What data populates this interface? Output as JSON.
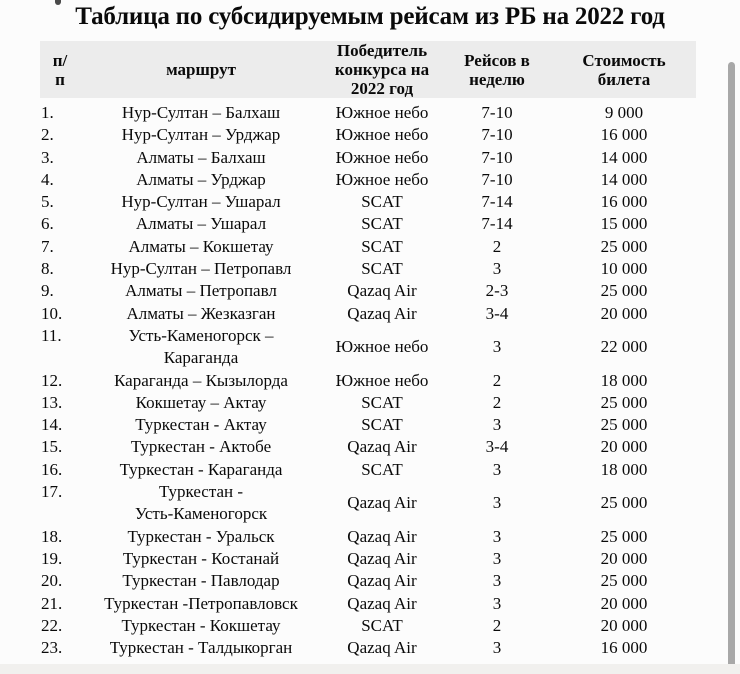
{
  "title": "Таблица по субсидируемым рейсам из РБ на 2022 год",
  "colors": {
    "page_bg": "#fcfcfc",
    "header_bg": "#ececec",
    "text": "#0a0a0a",
    "scrollbar": "#a8a8a8",
    "bottom_strip": "#f1f0ee"
  },
  "table": {
    "headers": {
      "num": "п/\nп",
      "route": "маршрут",
      "winner": "Победитель\nконкурса на\n2022 год",
      "per_week": "Рейсов в\nнеделю",
      "price": "Стоимость\nбилета"
    },
    "rows": [
      {
        "num": "1.",
        "route": "Нур-Султан – Балхаш",
        "winner": "Южное небо",
        "per_week": "7-10",
        "price": "9 000"
      },
      {
        "num": "2.",
        "route": "Нур-Султан – Урджар",
        "winner": "Южное небо",
        "per_week": "7-10",
        "price": "16 000"
      },
      {
        "num": "3.",
        "route": "Алматы – Балхаш",
        "winner": "Южное небо",
        "per_week": "7-10",
        "price": "14 000"
      },
      {
        "num": "4.",
        "route": "Алматы – Урджар",
        "winner": "Южное небо",
        "per_week": "7-10",
        "price": "14 000"
      },
      {
        "num": "5.",
        "route": "Нур-Султан – Ушарал",
        "winner": "SCAT",
        "per_week": "7-14",
        "price": "16 000"
      },
      {
        "num": "6.",
        "route": "Алматы – Ушарал",
        "winner": "SCAT",
        "per_week": "7-14",
        "price": "15 000"
      },
      {
        "num": "7.",
        "route": "Алматы – Кокшетау",
        "winner": "SCAT",
        "per_week": "2",
        "price": "25 000"
      },
      {
        "num": "8.",
        "route": "Нур-Султан – Петропавл",
        "winner": "SCAT",
        "per_week": "3",
        "price": "10 000"
      },
      {
        "num": "9.",
        "route": "Алматы – Петропавл",
        "winner": "Qazaq Air",
        "per_week": "2-3",
        "price": "25 000"
      },
      {
        "num": "10.",
        "route": "Алматы – Жезказган",
        "winner": "Qazaq Air",
        "per_week": "3-4",
        "price": "20 000"
      },
      {
        "num": "11.",
        "route": "Усть-Каменогорск –\nКараганда",
        "winner": "Южное небо",
        "per_week": "3",
        "price": "22 000"
      },
      {
        "num": "12.",
        "route": "Караганда – Кызылорда",
        "winner": "Южное небо",
        "per_week": "2",
        "price": "18 000"
      },
      {
        "num": "13.",
        "route": "Кокшетау – Актау",
        "winner": "SCAT",
        "per_week": "2",
        "price": "25 000"
      },
      {
        "num": "14.",
        "route": "Туркестан - Актау",
        "winner": "SCAT",
        "per_week": "3",
        "price": "25 000"
      },
      {
        "num": "15.",
        "route": "Туркестан - Актобе",
        "winner": "Qazaq Air",
        "per_week": "3-4",
        "price": "20 000"
      },
      {
        "num": "16.",
        "route": "Туркестан - Караганда",
        "winner": "SCAT",
        "per_week": "3",
        "price": "18 000"
      },
      {
        "num": "17.",
        "route": "Туркестан -\nУсть-Каменогорск",
        "winner": "Qazaq Air",
        "per_week": "3",
        "price": "25 000"
      },
      {
        "num": "18.",
        "route": "Туркестан - Уральск",
        "winner": "Qazaq Air",
        "per_week": "3",
        "price": "25 000"
      },
      {
        "num": "19.",
        "route": "Туркестан - Костанай",
        "winner": "Qazaq Air",
        "per_week": "3",
        "price": "20 000"
      },
      {
        "num": "20.",
        "route": "Туркестан - Павлодар",
        "winner": "Qazaq Air",
        "per_week": "3",
        "price": "25 000"
      },
      {
        "num": "21.",
        "route": "Туркестан -Петропавловск",
        "winner": "Qazaq Air",
        "per_week": "3",
        "price": "20 000"
      },
      {
        "num": "22.",
        "route": "Туркестан - Кокшетау",
        "winner": "SCAT",
        "per_week": "2",
        "price": "20 000"
      },
      {
        "num": "23.",
        "route": "Туркестан - Талдыкорган",
        "winner": "Qazaq Air",
        "per_week": "3",
        "price": "16 000"
      }
    ]
  }
}
